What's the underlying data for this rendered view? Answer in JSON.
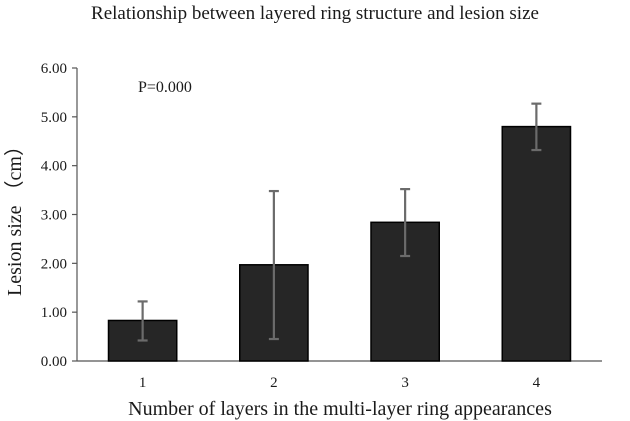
{
  "chart_data": {
    "type": "bar",
    "title": "Relationship between layered ring structure and lesion size",
    "xlabel": "Number of layers in the multi-layer ring appearances",
    "ylabel": "Lesion size （cm）",
    "categories": [
      "1",
      "2",
      "3",
      "4"
    ],
    "values": [
      0.83,
      1.97,
      2.84,
      4.8
    ],
    "error_low": [
      0.42,
      0.45,
      2.15,
      4.32
    ],
    "error_high": [
      1.22,
      3.48,
      3.52,
      5.27
    ],
    "ylim": [
      0,
      6
    ],
    "yticks": [
      "0.00",
      "1.00",
      "2.00",
      "3.00",
      "4.00",
      "5.00",
      "6.00"
    ],
    "annotation": "P=0.000",
    "grid": false,
    "legend": "none",
    "bar_color": "#262626",
    "bar_outline": "#000000",
    "error_color": "#6b6b6b"
  }
}
